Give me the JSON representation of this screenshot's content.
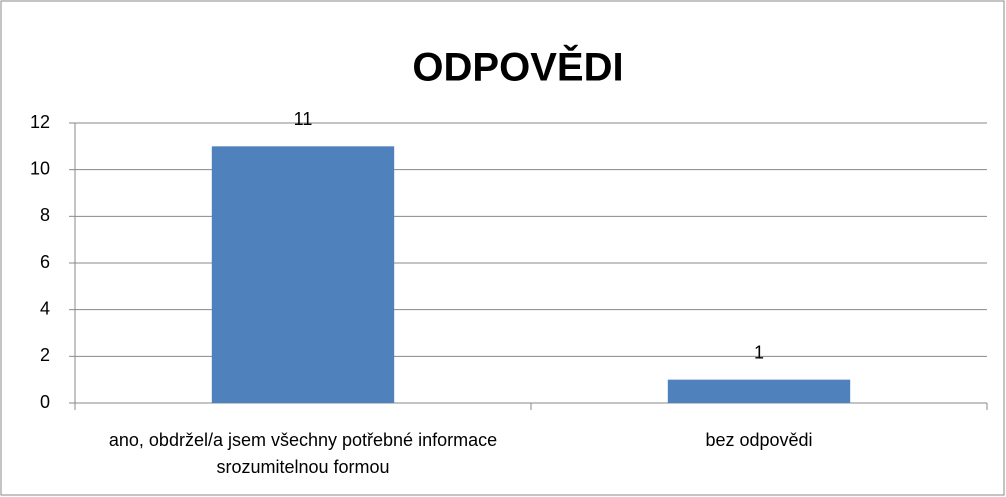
{
  "chart_data": {
    "type": "bar",
    "title": "ODPOVĚDI",
    "categories": [
      "ano, obdržel/a jsem všechny potřebné informace srozumitelnou formou",
      "bez odpovědi"
    ],
    "values": [
      11,
      1
    ],
    "color": "#4f81bd",
    "ylim": [
      0,
      12
    ],
    "yticks": [
      0,
      2,
      4,
      6,
      8,
      10,
      12
    ],
    "grid": true
  }
}
